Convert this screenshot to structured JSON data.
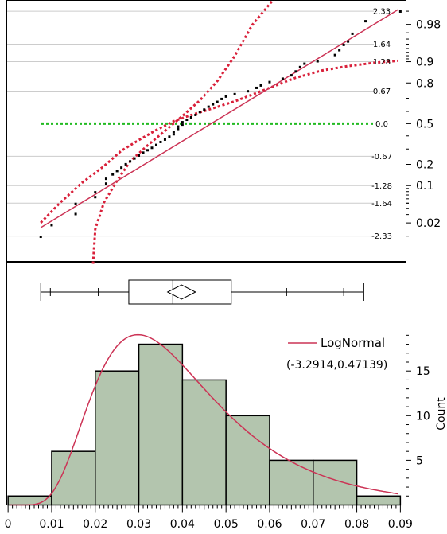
{
  "chart_data": [
    {
      "type": "scatter",
      "panel": "normal-quantile-plot",
      "right_axis": {
        "ticks": [
          0.02,
          0.1,
          0.2,
          0.5,
          0.8,
          0.9,
          0.98
        ],
        "labels": [
          "0.02",
          "0.1",
          "0.2",
          "0.5",
          "0.8",
          "0.9",
          "0.98"
        ]
      },
      "inner_z_labels": [
        {
          "z": 2.326,
          "label": "2.33"
        },
        {
          "z": 1.645,
          "label": "1.64"
        },
        {
          "z": 1.282,
          "label": "1.28"
        },
        {
          "z": 0.674,
          "label": "0.67"
        },
        {
          "z": 0.0,
          "label": "0.0"
        },
        {
          "z": -0.674,
          "label": "-0.67"
        },
        {
          "z": -1.282,
          "label": "-1.28"
        },
        {
          "z": -1.645,
          "label": "-1.64"
        },
        {
          "z": -2.326,
          "label": "-2.33"
        }
      ],
      "ylim": [
        -2.85,
        2.55
      ],
      "points": [
        [
          0.0075,
          -2.34
        ],
        [
          0.01,
          -2.1
        ],
        [
          0.0155,
          -1.87
        ],
        [
          0.0155,
          -1.66
        ],
        [
          0.02,
          -1.52
        ],
        [
          0.02,
          -1.42
        ],
        [
          0.0225,
          -1.24
        ],
        [
          0.0225,
          -1.14
        ],
        [
          0.024,
          -1.05
        ],
        [
          0.025,
          -0.98
        ],
        [
          0.026,
          -0.91
        ],
        [
          0.027,
          -0.84
        ],
        [
          0.028,
          -0.78
        ],
        [
          0.029,
          -0.72
        ],
        [
          0.03,
          -0.66
        ],
        [
          0.031,
          -0.6
        ],
        [
          0.032,
          -0.55
        ],
        [
          0.033,
          -0.5
        ],
        [
          0.034,
          -0.44
        ],
        [
          0.035,
          -0.38
        ],
        [
          0.036,
          -0.33
        ],
        [
          0.037,
          -0.27
        ],
        [
          0.038,
          -0.22
        ],
        [
          0.038,
          -0.17
        ],
        [
          0.039,
          -0.11
        ],
        [
          0.039,
          -0.06
        ],
        [
          0.04,
          -0.02
        ],
        [
          0.04,
          0.03
        ],
        [
          0.041,
          0.08
        ],
        [
          0.042,
          0.13
        ],
        [
          0.043,
          0.18
        ],
        [
          0.044,
          0.24
        ],
        [
          0.045,
          0.29
        ],
        [
          0.046,
          0.35
        ],
        [
          0.047,
          0.4
        ],
        [
          0.048,
          0.45
        ],
        [
          0.049,
          0.51
        ],
        [
          0.05,
          0.56
        ],
        [
          0.052,
          0.61
        ],
        [
          0.055,
          0.67
        ],
        [
          0.057,
          0.74
        ],
        [
          0.058,
          0.79
        ],
        [
          0.06,
          0.86
        ],
        [
          0.063,
          0.93
        ],
        [
          0.065,
          1.0
        ],
        [
          0.066,
          1.08
        ],
        [
          0.067,
          1.17
        ],
        [
          0.068,
          1.24
        ],
        [
          0.071,
          1.29
        ],
        [
          0.075,
          1.42
        ],
        [
          0.076,
          1.52
        ],
        [
          0.077,
          1.63
        ],
        [
          0.078,
          1.7
        ],
        [
          0.079,
          1.86
        ],
        [
          0.082,
          2.12
        ],
        [
          0.09,
          2.32
        ]
      ],
      "fit_line": [
        [
          0.0075,
          -2.15
        ],
        [
          0.0895,
          2.36
        ]
      ],
      "confidence_band_upper": [
        [
          0.0195,
          -2.9
        ],
        [
          0.02,
          -2.18
        ],
        [
          0.022,
          -1.63
        ],
        [
          0.025,
          -1.18
        ],
        [
          0.028,
          -0.78
        ],
        [
          0.032,
          -0.45
        ],
        [
          0.036,
          -0.15
        ],
        [
          0.04,
          0.16
        ],
        [
          0.044,
          0.48
        ],
        [
          0.048,
          0.88
        ],
        [
          0.052,
          1.4
        ],
        [
          0.056,
          2.04
        ],
        [
          0.061,
          2.58
        ]
      ],
      "confidence_band_lower": [
        [
          0.0075,
          -2.05
        ],
        [
          0.012,
          -1.63
        ],
        [
          0.017,
          -1.22
        ],
        [
          0.022,
          -0.88
        ],
        [
          0.026,
          -0.56
        ],
        [
          0.03,
          -0.34
        ],
        [
          0.034,
          -0.13
        ],
        [
          0.038,
          0.05
        ],
        [
          0.042,
          0.18
        ],
        [
          0.046,
          0.29
        ],
        [
          0.052,
          0.46
        ],
        [
          0.06,
          0.74
        ],
        [
          0.066,
          0.95
        ],
        [
          0.072,
          1.1
        ],
        [
          0.078,
          1.19
        ],
        [
          0.084,
          1.26
        ],
        [
          0.0895,
          1.3
        ]
      ],
      "reference_line_z": 0.0,
      "colors": {
        "points": "#000000",
        "fit": "#cc3355",
        "band": "#d9203a",
        "reference": "#22bb22",
        "grid": "#cccccc"
      }
    },
    {
      "type": "boxplot",
      "panel": "outlier-box-plot",
      "min": 0.0075,
      "q1": 0.0277,
      "median": 0.0378,
      "q3": 0.0512,
      "max": 0.0816,
      "mean": 0.0398,
      "mean_diamond_halfwidth": 0.0032,
      "quantile_ticks": [
        0.0097,
        0.0207,
        0.0639,
        0.077
      ]
    },
    {
      "type": "bar",
      "panel": "histogram",
      "bins": [
        {
          "start": 0.0,
          "end": 0.01,
          "count": 1
        },
        {
          "start": 0.01,
          "end": 0.02,
          "count": 6
        },
        {
          "start": 0.02,
          "end": 0.03,
          "count": 15
        },
        {
          "start": 0.03,
          "end": 0.04,
          "count": 18
        },
        {
          "start": 0.04,
          "end": 0.05,
          "count": 14
        },
        {
          "start": 0.05,
          "end": 0.06,
          "count": 10
        },
        {
          "start": 0.06,
          "end": 0.07,
          "count": 5
        },
        {
          "start": 0.07,
          "end": 0.08,
          "count": 5
        },
        {
          "start": 0.08,
          "end": 0.09,
          "count": 1
        }
      ],
      "xlim": [
        -0.0003,
        0.0913
      ],
      "xticks": [
        0,
        0.01,
        0.02,
        0.03,
        0.04,
        0.05,
        0.06,
        0.07,
        0.08,
        0.09
      ],
      "xtick_labels": [
        "0",
        "0.01",
        "0.02",
        "0.03",
        "0.04",
        "0.05",
        "0.06",
        "0.07",
        "0.08",
        "0.09"
      ],
      "ylim": [
        0,
        20.5
      ],
      "yticks": [
        5,
        10,
        15
      ],
      "ylabel": "Count",
      "density_curve": {
        "name": "LogNormal",
        "params": "(-3.2914,0.47139)",
        "mu": -3.2914,
        "sigma": 0.47139,
        "n": 75,
        "bin_width": 0.01
      },
      "colors": {
        "bar_fill": "#b3c5ae",
        "bar_stroke": "#000000",
        "curve": "#cc3355"
      }
    }
  ]
}
